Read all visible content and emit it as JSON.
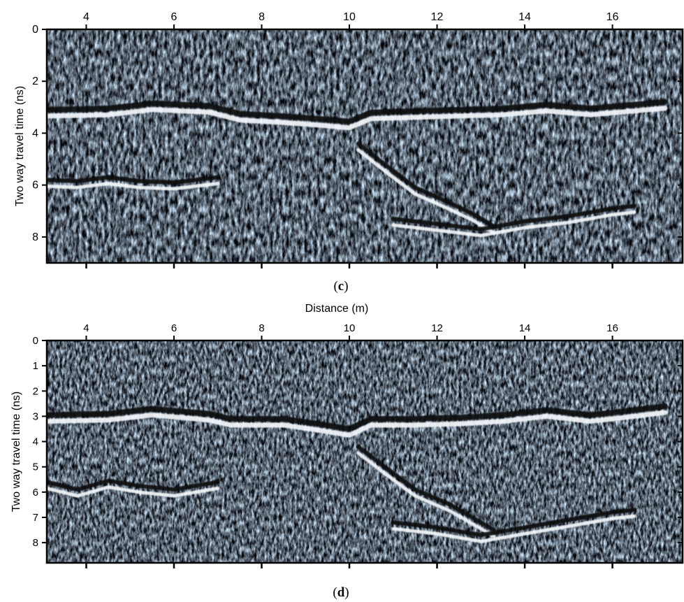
{
  "chart_data": [
    {
      "type": "heatmap",
      "panel_label": "c",
      "title": "",
      "xlabel": "",
      "ylabel": "Two way travel time (ns)",
      "xlim": [
        3.1,
        17.6
      ],
      "ylim": [
        0,
        9
      ],
      "x_ticks": [
        4,
        6,
        8,
        10,
        12,
        14,
        16
      ],
      "y_ticks": [
        0,
        2,
        4,
        6,
        8
      ],
      "x_axis_position": "top",
      "colormap": "grayscale-blue (black → slate → white)",
      "reflectors": [
        {
          "name": "",
          "points": [
            [
              3.1,
              3.1
            ],
            [
              4.5,
              3.05
            ],
            [
              5.5,
              2.85
            ],
            [
              6.8,
              2.95
            ],
            [
              7.5,
              3.25
            ],
            [
              8.5,
              3.35
            ],
            [
              9.3,
              3.45
            ],
            [
              10.0,
              3.55
            ],
            [
              10.5,
              3.2
            ],
            [
              11.5,
              3.15
            ],
            [
              12.5,
              3.1
            ],
            [
              13.5,
              3.05
            ],
            [
              14.5,
              2.9
            ],
            [
              15.5,
              3.05
            ],
            [
              16.5,
              2.9
            ],
            [
              17.2,
              2.8
            ]
          ]
        },
        {
          "name": "",
          "points": [
            [
              3.1,
              5.8
            ],
            [
              3.8,
              5.85
            ],
            [
              4.5,
              5.7
            ],
            [
              5.2,
              5.85
            ],
            [
              6.0,
              5.9
            ],
            [
              7.0,
              5.7
            ]
          ]
        },
        {
          "name": "",
          "points": [
            [
              10.2,
              4.4
            ],
            [
              10.8,
              5.2
            ],
            [
              11.5,
              6.1
            ],
            [
              12.3,
              6.7
            ],
            [
              12.8,
              7.1
            ],
            [
              13.3,
              7.6
            ]
          ]
        },
        {
          "name": "",
          "points": [
            [
              11.0,
              7.3
            ],
            [
              12.0,
              7.5
            ],
            [
              13.0,
              7.7
            ],
            [
              14.0,
              7.4
            ],
            [
              15.0,
              7.2
            ],
            [
              16.0,
              6.9
            ],
            [
              16.5,
              6.8
            ]
          ]
        }
      ]
    },
    {
      "type": "heatmap",
      "panel_label": "d",
      "title": "",
      "xlabel": "Distance (m)",
      "ylabel": "Two way travel time (ns)",
      "xlim": [
        3.1,
        17.6
      ],
      "ylim": [
        0,
        8.8
      ],
      "x_ticks": [
        4,
        6,
        8,
        10,
        12,
        14,
        16
      ],
      "y_ticks": [
        0,
        1,
        2,
        3,
        4,
        5,
        6,
        7,
        8
      ],
      "x_axis_position": "top",
      "colormap": "grayscale-blue (black → slate → white)",
      "reflectors": [
        {
          "name": "",
          "points": [
            [
              3.1,
              2.95
            ],
            [
              4.5,
              2.9
            ],
            [
              5.5,
              2.7
            ],
            [
              6.8,
              2.9
            ],
            [
              7.3,
              3.1
            ],
            [
              8.5,
              3.1
            ],
            [
              9.3,
              3.3
            ],
            [
              10.0,
              3.5
            ],
            [
              10.5,
              3.1
            ],
            [
              11.5,
              3.1
            ],
            [
              12.5,
              3.05
            ],
            [
              13.5,
              2.95
            ],
            [
              14.5,
              2.75
            ],
            [
              15.5,
              2.95
            ],
            [
              16.5,
              2.75
            ],
            [
              17.2,
              2.6
            ]
          ]
        },
        {
          "name": "",
          "points": [
            [
              3.1,
              5.6
            ],
            [
              3.8,
              5.9
            ],
            [
              4.5,
              5.55
            ],
            [
              5.2,
              5.75
            ],
            [
              6.0,
              5.9
            ],
            [
              7.0,
              5.6
            ]
          ]
        },
        {
          "name": "",
          "points": [
            [
              10.2,
              4.2
            ],
            [
              10.8,
              5.0
            ],
            [
              11.5,
              5.9
            ],
            [
              12.3,
              6.5
            ],
            [
              12.8,
              7.0
            ],
            [
              13.3,
              7.5
            ]
          ]
        },
        {
          "name": "",
          "points": [
            [
              11.0,
              7.2
            ],
            [
              12.0,
              7.4
            ],
            [
              13.0,
              7.7
            ],
            [
              14.0,
              7.4
            ],
            [
              15.0,
              7.1
            ],
            [
              16.0,
              6.8
            ],
            [
              16.5,
              6.7
            ]
          ]
        }
      ]
    }
  ]
}
